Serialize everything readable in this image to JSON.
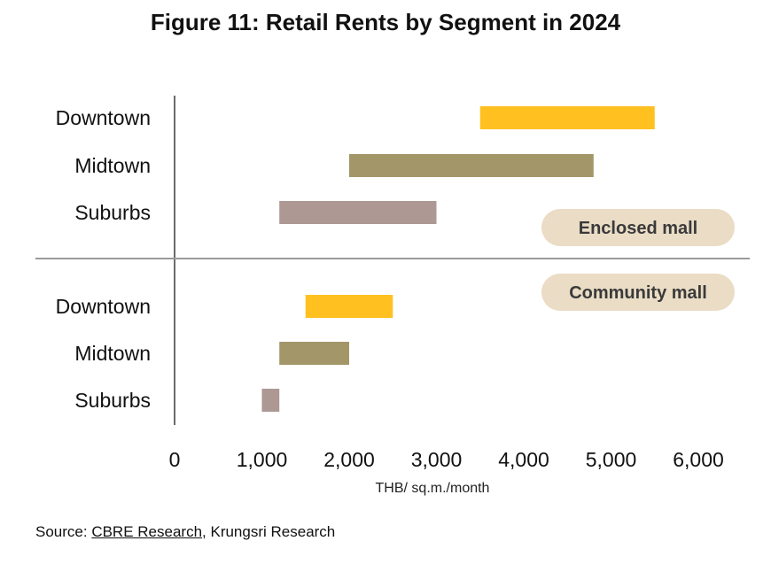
{
  "chart_data": {
    "type": "bar",
    "subtype": "floating-range-horizontal",
    "title": "Figure 11: Retail Rents by Segment in 2024",
    "xlabel": "THB/ sq.m./month",
    "ylabel": "",
    "xlim": [
      0,
      6000
    ],
    "xticks": [
      0,
      1000,
      2000,
      3000,
      4000,
      5000,
      6000
    ],
    "xtick_labels": [
      "0",
      "1,000",
      "2,000",
      "3,000",
      "4,000",
      "5,000",
      "6,000"
    ],
    "grid": false,
    "groups": [
      {
        "name": "Enclosed mall",
        "bars": [
          {
            "category": "Downtown",
            "range": [
              3500,
              5500
            ],
            "color": "#FFC020"
          },
          {
            "category": "Midtown",
            "range": [
              2000,
              4800
            ],
            "color": "#A39769"
          },
          {
            "category": "Suburbs",
            "range": [
              1200,
              3000
            ],
            "color": "#AD9894"
          }
        ]
      },
      {
        "name": "Community mall",
        "bars": [
          {
            "category": "Downtown",
            "range": [
              1500,
              2500
            ],
            "color": "#FFC020"
          },
          {
            "category": "Midtown",
            "range": [
              1200,
              2000
            ],
            "color": "#A39769"
          },
          {
            "category": "Suburbs",
            "range": [
              1000,
              1200
            ],
            "color": "#AD9894"
          }
        ]
      }
    ],
    "group_label_fill": "#EADCC5"
  },
  "source": {
    "prefix": "Source: ",
    "link_text": "CBRE Research",
    "suffix": ", Krungsri Research"
  }
}
